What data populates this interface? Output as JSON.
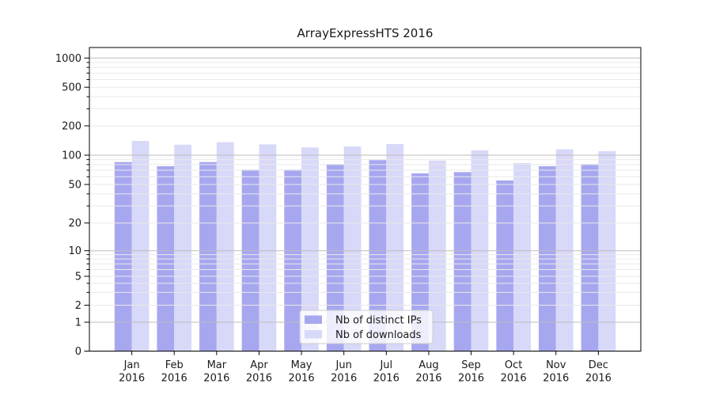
{
  "chart_data": {
    "type": "bar",
    "title": "ArrayExpressHTS 2016",
    "categories": [
      "Jan",
      "Feb",
      "Mar",
      "Apr",
      "May",
      "Jun",
      "Jul",
      "Aug",
      "Sep",
      "Oct",
      "Nov",
      "Dec"
    ],
    "category_year": "2016",
    "series": [
      {
        "name": "Nb of distinct IPs",
        "color": "#a7a7f0",
        "values": [
          85,
          77,
          85,
          71,
          71,
          81,
          89,
          65,
          67,
          55,
          77,
          81
        ]
      },
      {
        "name": "Nb of downloads",
        "color": "#d8d8f9",
        "values": [
          140,
          128,
          136,
          129,
          120,
          123,
          130,
          88,
          112,
          83,
          115,
          110
        ]
      }
    ],
    "y_scale": "symlog",
    "ylim": [
      0,
      1000
    ],
    "y_ticks": [
      0,
      1,
      2,
      5,
      10,
      20,
      50,
      100,
      200,
      500,
      1000
    ],
    "y_major_gridlines": [
      1,
      10,
      100,
      1000
    ],
    "y_minor_gridlines": [
      3,
      4,
      6,
      7,
      8,
      9,
      30,
      40,
      60,
      70,
      80,
      90,
      300,
      400,
      600,
      700,
      800,
      900
    ],
    "grid": true,
    "legend_position": "lower-center"
  },
  "colors": {
    "bar_dark": "#a7a7f0",
    "bar_light": "#d8d8f9",
    "grid_major": "#bdbdbd",
    "grid_minor": "#e9e9e9",
    "spine": "#000000",
    "text": "#1a1a1a",
    "legend_border": "#cccccc",
    "legend_fill": "rgba(255,255,255,0.8)"
  }
}
